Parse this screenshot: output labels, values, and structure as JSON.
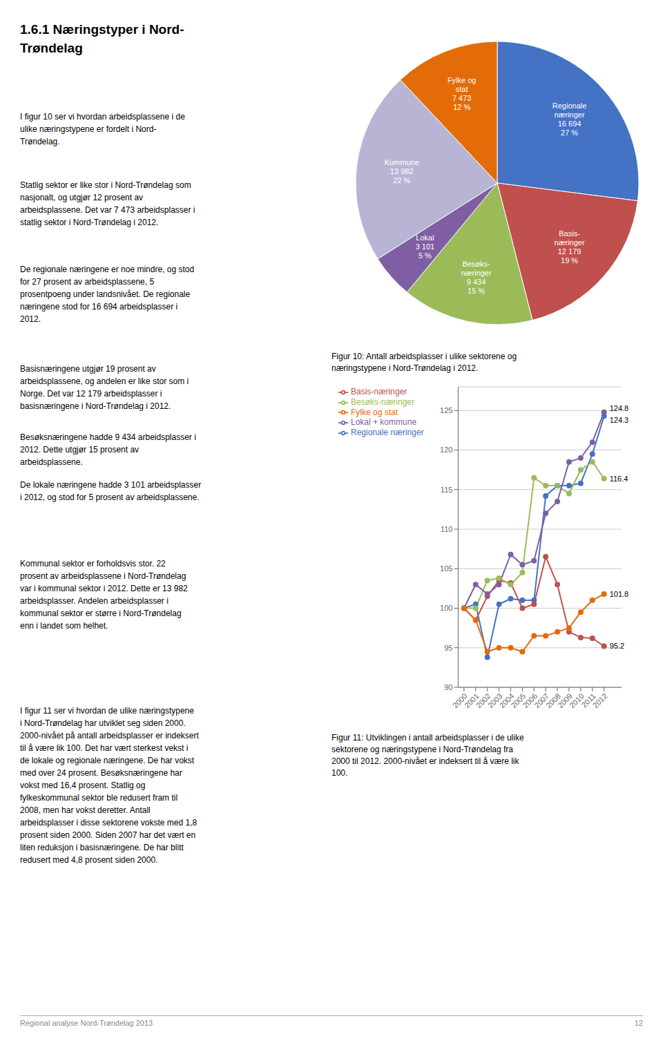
{
  "title": "1.6.1 Næringstyper i Nord-\nTrøndelag",
  "annotations": [
    "I figur 10 ser vi hvordan arbeidsplassene i de\nulike næringstypene er fordelt i Nord-\nTrøndelag.",
    "Statlig sektor er like stor i Nord-Trøndelag som\nnasjonalt, og utgjør 12 prosent av\narbeidsplassene. Det var 7 473 arbeidsplasser i\nstatlig sektor i Nord-Trøndelag i 2012.",
    "De regionale næringene er noe mindre, og stod\nfor 27 prosent av arbeidsplassene, 5\nprosentpoeng under landsnivået. De regionale\nnæringene stod for 16 694 arbeidsplasser i\n2012.",
    "Basisnæringene utgjør 19 prosent av\narbeidsplassene, og andelen er like stor som i\nNorge. Det var 12 179 arbeidsplasser i\nbasisnæringene i Nord-Trøndelag i 2012.",
    "Besøksnæringene hadde 9 434 arbeidsplasser i\n2012. Dette utgjør 15 prosent av\narbeidsplassene.",
    "De lokale næringene hadde 3 101 arbeidsplasser\ni 2012, og stod for 5 prosent av arbeidsplassene.",
    "Kommunal sektor er forholdsvis stor. 22\nprosent av arbeidsplassene i Nord-Trøndelag\nvar i kommunal sektor i 2012. Dette er 13 982\narbeidsplasser. Andelen arbeidsplasser i\nkommunal sektor er større i Nord-Trøndelag\nenn i landet som helhet.",
    "I figur 11 ser vi hvordan de ulike næringstypene\ni Nord-Trøndelag har utviklet seg siden 2000.\n2000-nivået på antall arbeidsplasser er indeksert\ntil å være lik 100. Det har vært sterkest vekst i\nde lokale og regionale næringene. De har vokst\nmed over 24 prosent. Besøksnæringene har\nvokst med 16,4 prosent. Statlig og\nfylkeskommunal sektor ble redusert fram til\n2008, men har vokst deretter. Antall\narbeidsplasser i disse sektorene vokste med 1,8\nprosent siden 2000. Siden 2007 har det vært en\nliten reduksjon i basisnæringene. De har blitt\nredusert med 4,8 prosent siden 2000."
  ],
  "footer": [
    "Regional analyse Nord-Trøndelag 2013",
    "12"
  ],
  "chart_data": [
    {
      "type": "pie",
      "title": "Figur 10: Antall arbeidsplasser i ulike sektorene og\nnæringstypene i Nord-Trøndelag i 2012.",
      "categories": [
        "Regionale\nnæringer\n16 694\n27 %",
        "Basis-\nnæringer\n12 179\n19 %",
        "Besøks-\nnæringer\n9 434\n15 %",
        "Lokal\n3 101\n5 %",
        "Kommune\n13 982\n22 %",
        "Fylke og\nstat\n7 473\n12 %"
      ],
      "values": [
        27,
        19,
        15,
        5,
        22,
        12
      ],
      "colors": [
        "#4472C4",
        "#C0504D",
        "#9BBB59",
        "#7F5EA3",
        "#B8B4D4",
        "#E36C09"
      ]
    },
    {
      "type": "line",
      "title": "Figur 11: Utviklingen i antall arbeidsplasser i de ulike\nsektorene og næringstypene i Nord-Trøndelag fra\n2000 til 2012. 2000-nivået er indeksert til å være lik\n100.",
      "x": [
        2000,
        2001,
        2002,
        2003,
        2004,
        2005,
        2006,
        2007,
        2008,
        2009,
        2010,
        2011,
        2012
      ],
      "series": [
        {
          "name": "Regionale næringer",
          "color": "#4472C4",
          "marker": "circle",
          "values": [
            100,
            100.5,
            93.8,
            100.5,
            101.2,
            101.0,
            101.0,
            114.2,
            115.5,
            115.5,
            115.8,
            119.5,
            124.3
          ]
        },
        {
          "name": "Basis-næringer",
          "color": "#C0504D",
          "marker": "circle",
          "values": [
            100,
            98.5,
            101.5,
            103.5,
            103.2,
            100.0,
            100.5,
            106.5,
            103.0,
            97.0,
            96.3,
            96.2,
            95.2
          ]
        },
        {
          "name": "Besøks-næringer",
          "color": "#9BBB59",
          "marker": "circle",
          "values": [
            100,
            100.0,
            103.5,
            103.8,
            103.0,
            104.5,
            116.5,
            115.5,
            115.5,
            114.5,
            117.5,
            118.5,
            116.4
          ]
        },
        {
          "name": "Lokal + kommune",
          "color": "#7F5EA3",
          "marker": "circle",
          "values": [
            100,
            103.0,
            101.8,
            103.0,
            106.8,
            105.5,
            106.0,
            112.0,
            113.5,
            118.5,
            119.0,
            121.0,
            124.8
          ]
        },
        {
          "name": "Fylke og stat",
          "color": "#E36C09",
          "marker": "circle",
          "values": [
            100,
            98.5,
            94.5,
            95.0,
            95.0,
            94.5,
            96.5,
            96.5,
            97.0,
            97.5,
            99.5,
            101.0,
            101.8
          ]
        }
      ],
      "xlim": [
        1999.5,
        2013.5
      ],
      "xticks": [
        2000,
        2001,
        2002,
        2003,
        2004,
        2005,
        2006,
        2007,
        2008,
        2009,
        2010,
        2011,
        2012
      ],
      "ylim": [
        90,
        128
      ],
      "yticks": [
        90,
        95,
        100,
        105,
        110,
        115,
        120,
        125
      ],
      "grid": true,
      "legend": "top",
      "annotations": [
        {
          "x": 2012,
          "y": 124.8,
          "text": "124.8"
        },
        {
          "x": 2012,
          "y": 124.3,
          "text": "124.3"
        },
        {
          "x": 2012,
          "y": 116.4,
          "text": "116.4"
        },
        {
          "x": 2012,
          "y": 101.8,
          "text": "101.8"
        },
        {
          "x": 2012,
          "y": 95.2,
          "text": "95.2"
        }
      ]
    }
  ]
}
